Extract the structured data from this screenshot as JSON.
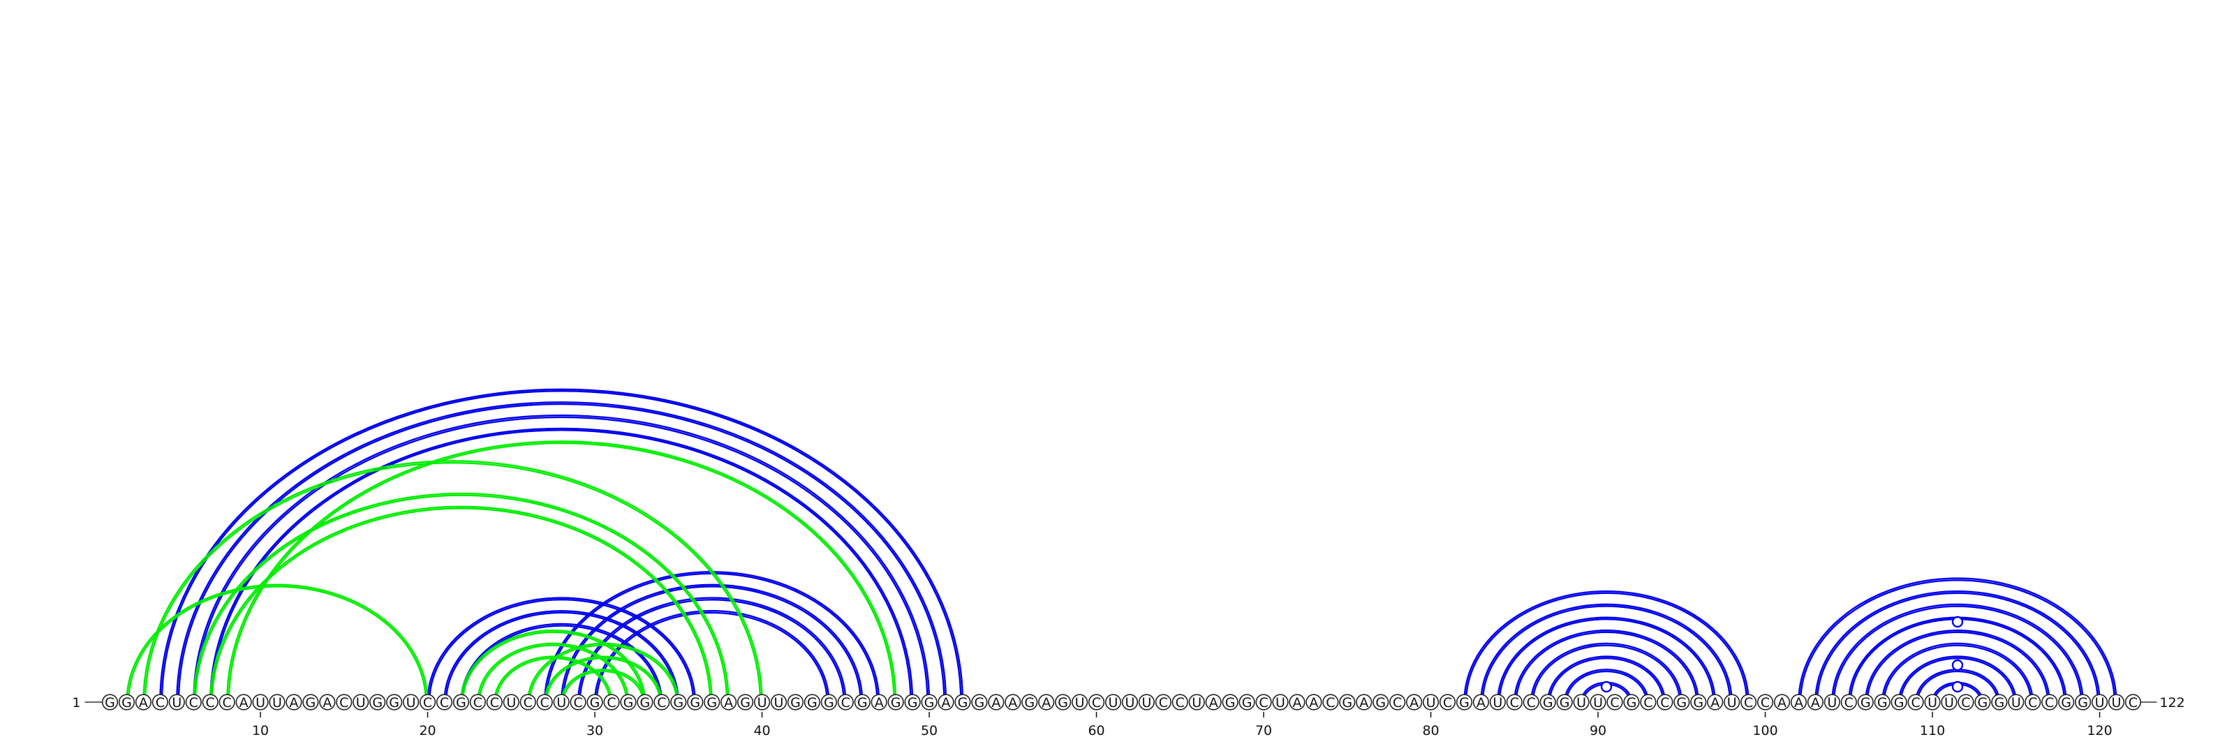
{
  "sequence": "GGACUCCCAUUAGACUGGUCCGCCUCCUCGCGGCGGGAGUUGGGCGAGGGAGGAAGAGUCUUUCCUAGGCUAACGAGCAUCGAUCCGGUUCGCCGGAUCCAAAUCGGGCUUCGGUCCGGUUC",
  "start_label": "1",
  "end_label": "122",
  "ticks": [
    {
      "pos": 10,
      "label": "10"
    },
    {
      "pos": 20,
      "label": "20"
    },
    {
      "pos": 30,
      "label": "30"
    },
    {
      "pos": 40,
      "label": "40"
    },
    {
      "pos": 50,
      "label": "50"
    },
    {
      "pos": 60,
      "label": "60"
    },
    {
      "pos": 70,
      "label": "70"
    },
    {
      "pos": 80,
      "label": "80"
    },
    {
      "pos": 90,
      "label": "90"
    },
    {
      "pos": 100,
      "label": "100"
    },
    {
      "pos": 110,
      "label": "110"
    },
    {
      "pos": 120,
      "label": "120"
    }
  ],
  "colors": {
    "blue": "#0000ee",
    "green": "#00ee00"
  },
  "arc_groups": [
    {
      "color": "blue",
      "pairs": [
        [
          4,
          52
        ],
        [
          5,
          51
        ],
        [
          6,
          50
        ],
        [
          7,
          49
        ]
      ]
    },
    {
      "color": "blue",
      "pairs": [
        [
          20,
          36
        ],
        [
          21,
          35
        ],
        [
          22,
          34
        ]
      ]
    },
    {
      "color": "blue",
      "pairs": [
        [
          27,
          47
        ],
        [
          28,
          46
        ],
        [
          29,
          45
        ],
        [
          30,
          44
        ]
      ]
    },
    {
      "color": "green",
      "pairs": [
        [
          2,
          20
        ],
        [
          3,
          40
        ],
        [
          6,
          38
        ],
        [
          7,
          37
        ],
        [
          8,
          48
        ]
      ]
    },
    {
      "color": "green",
      "pairs": [
        [
          22,
          33
        ],
        [
          23,
          32
        ],
        [
          24,
          31
        ]
      ]
    },
    {
      "color": "green",
      "pairs": [
        [
          26,
          35
        ],
        [
          27,
          34
        ],
        [
          28,
          33
        ]
      ]
    },
    {
      "color": "blue",
      "pairs": [
        [
          82,
          99
        ],
        [
          83,
          98
        ],
        [
          84,
          97
        ],
        [
          85,
          96
        ],
        [
          86,
          95
        ],
        [
          87,
          94
        ],
        [
          88,
          93
        ],
        [
          89,
          92
        ]
      ]
    },
    {
      "color": "blue",
      "pairs": [
        [
          102,
          121
        ],
        [
          103,
          120
        ],
        [
          104,
          119
        ],
        [
          105,
          118
        ],
        [
          106,
          117
        ],
        [
          107,
          116
        ],
        [
          108,
          115
        ],
        [
          109,
          114
        ],
        [
          110,
          113
        ]
      ]
    }
  ],
  "markers": [
    {
      "pos": 90.5,
      "level": 1,
      "color": "blue"
    },
    {
      "pos": 111.5,
      "level": 1,
      "color": "blue"
    },
    {
      "pos": 111.5,
      "level": 2,
      "color": "blue"
    },
    {
      "pos": 111.5,
      "level": 4,
      "color": "blue"
    }
  ]
}
